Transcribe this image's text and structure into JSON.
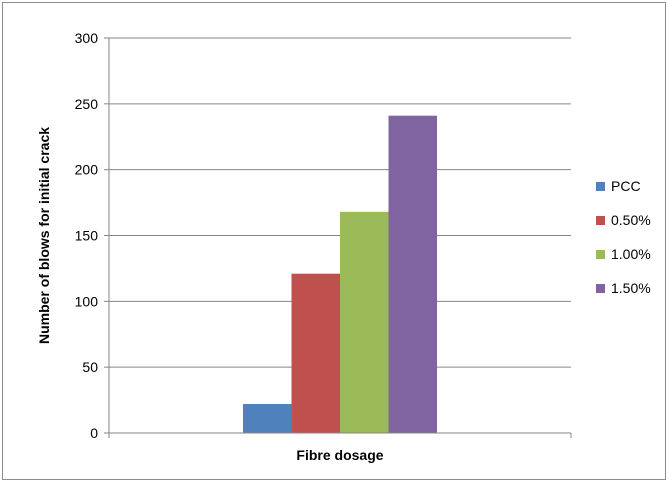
{
  "chart_data": {
    "type": "bar",
    "title": "",
    "xlabel": "Fibre dosage",
    "ylabel": "Number of blows for initial crack",
    "categories": [
      ""
    ],
    "ylim": [
      0,
      300
    ],
    "yticks": [
      0,
      50,
      100,
      150,
      200,
      250,
      300
    ],
    "grid": true,
    "legend_position": "right",
    "series": [
      {
        "name": "PCC",
        "values": [
          22
        ],
        "color": "#4F81BD"
      },
      {
        "name": "0.50%",
        "values": [
          121
        ],
        "color": "#C0504D"
      },
      {
        "name": "1.00%",
        "values": [
          168
        ],
        "color": "#9BBB59"
      },
      {
        "name": "1.50%",
        "values": [
          241
        ],
        "color": "#8064A2"
      }
    ]
  }
}
